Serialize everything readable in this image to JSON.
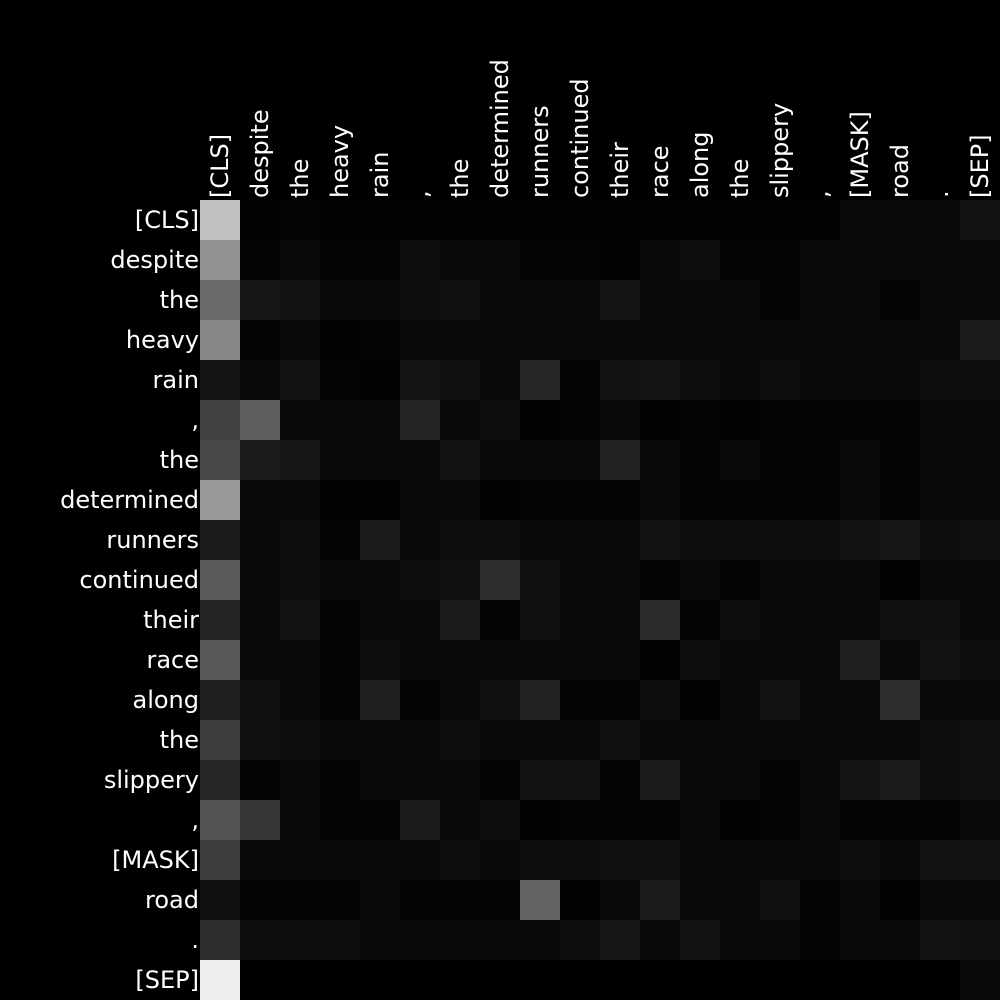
{
  "chart_data": {
    "type": "heatmap",
    "colormap": "grayscale",
    "grid": false,
    "legend": "none",
    "x_tokens": [
      "[CLS]",
      "despite",
      "the",
      "heavy",
      "rain",
      ",",
      "the",
      "determined",
      "runners",
      "continued",
      "their",
      "race",
      "along",
      "the",
      "slippery",
      ",",
      "[MASK]",
      "road",
      ".",
      "[SEP]"
    ],
    "y_tokens": [
      "[CLS]",
      "despite",
      "the",
      "heavy",
      "rain",
      ",",
      "the",
      "determined",
      "runners",
      "continued",
      "their",
      "race",
      "along",
      "the",
      "slippery",
      ",",
      "[MASK]",
      "road",
      ".",
      "[SEP]"
    ],
    "value_range": [
      0,
      1
    ],
    "values": [
      [
        0.76,
        0.01,
        0.02,
        0.01,
        0.01,
        0.01,
        0.01,
        0.01,
        0.01,
        0.01,
        0.01,
        0.01,
        0.01,
        0.01,
        0.01,
        0.01,
        0.04,
        0.03,
        0.03,
        0.07
      ],
      [
        0.57,
        0.02,
        0.04,
        0.02,
        0.02,
        0.05,
        0.04,
        0.03,
        0.02,
        0.02,
        0.01,
        0.03,
        0.05,
        0.02,
        0.02,
        0.03,
        0.04,
        0.03,
        0.04,
        0.04
      ],
      [
        0.41,
        0.09,
        0.07,
        0.03,
        0.03,
        0.05,
        0.06,
        0.03,
        0.03,
        0.03,
        0.08,
        0.03,
        0.03,
        0.03,
        0.02,
        0.03,
        0.03,
        0.02,
        0.04,
        0.04
      ],
      [
        0.53,
        0.02,
        0.04,
        0.01,
        0.02,
        0.03,
        0.04,
        0.04,
        0.03,
        0.03,
        0.03,
        0.03,
        0.03,
        0.03,
        0.03,
        0.04,
        0.04,
        0.03,
        0.04,
        0.11
      ],
      [
        0.08,
        0.04,
        0.07,
        0.02,
        0.01,
        0.08,
        0.06,
        0.03,
        0.15,
        0.02,
        0.07,
        0.08,
        0.05,
        0.04,
        0.05,
        0.04,
        0.04,
        0.04,
        0.05,
        0.05
      ],
      [
        0.26,
        0.37,
        0.04,
        0.03,
        0.03,
        0.14,
        0.04,
        0.05,
        0.01,
        0.02,
        0.04,
        0.01,
        0.02,
        0.01,
        0.02,
        0.02,
        0.02,
        0.02,
        0.03,
        0.03
      ],
      [
        0.28,
        0.1,
        0.09,
        0.03,
        0.03,
        0.03,
        0.07,
        0.03,
        0.04,
        0.04,
        0.13,
        0.03,
        0.02,
        0.04,
        0.02,
        0.02,
        0.04,
        0.02,
        0.04,
        0.04
      ],
      [
        0.6,
        0.03,
        0.04,
        0.01,
        0.01,
        0.04,
        0.03,
        0.01,
        0.02,
        0.02,
        0.02,
        0.04,
        0.02,
        0.02,
        0.02,
        0.02,
        0.03,
        0.02,
        0.03,
        0.03
      ],
      [
        0.1,
        0.03,
        0.05,
        0.02,
        0.11,
        0.04,
        0.05,
        0.05,
        0.03,
        0.04,
        0.03,
        0.07,
        0.05,
        0.05,
        0.05,
        0.05,
        0.07,
        0.09,
        0.05,
        0.06
      ],
      [
        0.35,
        0.04,
        0.05,
        0.03,
        0.03,
        0.05,
        0.06,
        0.18,
        0.06,
        0.03,
        0.04,
        0.02,
        0.03,
        0.02,
        0.03,
        0.04,
        0.04,
        0.01,
        0.04,
        0.04
      ],
      [
        0.14,
        0.03,
        0.07,
        0.02,
        0.04,
        0.04,
        0.11,
        0.02,
        0.06,
        0.04,
        0.03,
        0.17,
        0.02,
        0.05,
        0.04,
        0.04,
        0.04,
        0.06,
        0.06,
        0.04
      ],
      [
        0.34,
        0.03,
        0.04,
        0.02,
        0.05,
        0.04,
        0.04,
        0.04,
        0.03,
        0.04,
        0.04,
        0.01,
        0.05,
        0.04,
        0.04,
        0.04,
        0.12,
        0.03,
        0.07,
        0.05
      ],
      [
        0.12,
        0.06,
        0.03,
        0.02,
        0.12,
        0.02,
        0.03,
        0.06,
        0.13,
        0.02,
        0.02,
        0.05,
        0.01,
        0.03,
        0.07,
        0.03,
        0.03,
        0.18,
        0.04,
        0.03
      ],
      [
        0.24,
        0.06,
        0.05,
        0.03,
        0.04,
        0.03,
        0.05,
        0.04,
        0.04,
        0.04,
        0.06,
        0.04,
        0.03,
        0.03,
        0.03,
        0.03,
        0.04,
        0.03,
        0.05,
        0.06
      ],
      [
        0.15,
        0.02,
        0.03,
        0.02,
        0.04,
        0.03,
        0.04,
        0.02,
        0.07,
        0.07,
        0.02,
        0.11,
        0.04,
        0.03,
        0.02,
        0.04,
        0.08,
        0.1,
        0.05,
        0.06
      ],
      [
        0.32,
        0.21,
        0.03,
        0.02,
        0.02,
        0.11,
        0.03,
        0.05,
        0.01,
        0.02,
        0.02,
        0.02,
        0.03,
        0.01,
        0.02,
        0.03,
        0.02,
        0.02,
        0.02,
        0.04
      ],
      [
        0.24,
        0.04,
        0.04,
        0.03,
        0.04,
        0.03,
        0.05,
        0.04,
        0.05,
        0.05,
        0.06,
        0.06,
        0.04,
        0.03,
        0.03,
        0.04,
        0.05,
        0.04,
        0.07,
        0.07
      ],
      [
        0.06,
        0.02,
        0.02,
        0.02,
        0.04,
        0.02,
        0.02,
        0.02,
        0.39,
        0.01,
        0.03,
        0.1,
        0.03,
        0.03,
        0.06,
        0.02,
        0.04,
        0.01,
        0.03,
        0.04
      ],
      [
        0.18,
        0.05,
        0.05,
        0.05,
        0.03,
        0.03,
        0.04,
        0.04,
        0.04,
        0.05,
        0.09,
        0.04,
        0.07,
        0.03,
        0.03,
        0.02,
        0.03,
        0.03,
        0.07,
        0.06
      ],
      [
        0.93,
        0.0,
        0.0,
        0.0,
        0.0,
        0.0,
        0.0,
        0.0,
        0.0,
        0.0,
        0.0,
        0.0,
        0.0,
        0.0,
        0.0,
        0.0,
        0.0,
        0.0,
        0.0,
        0.03
      ]
    ]
  }
}
